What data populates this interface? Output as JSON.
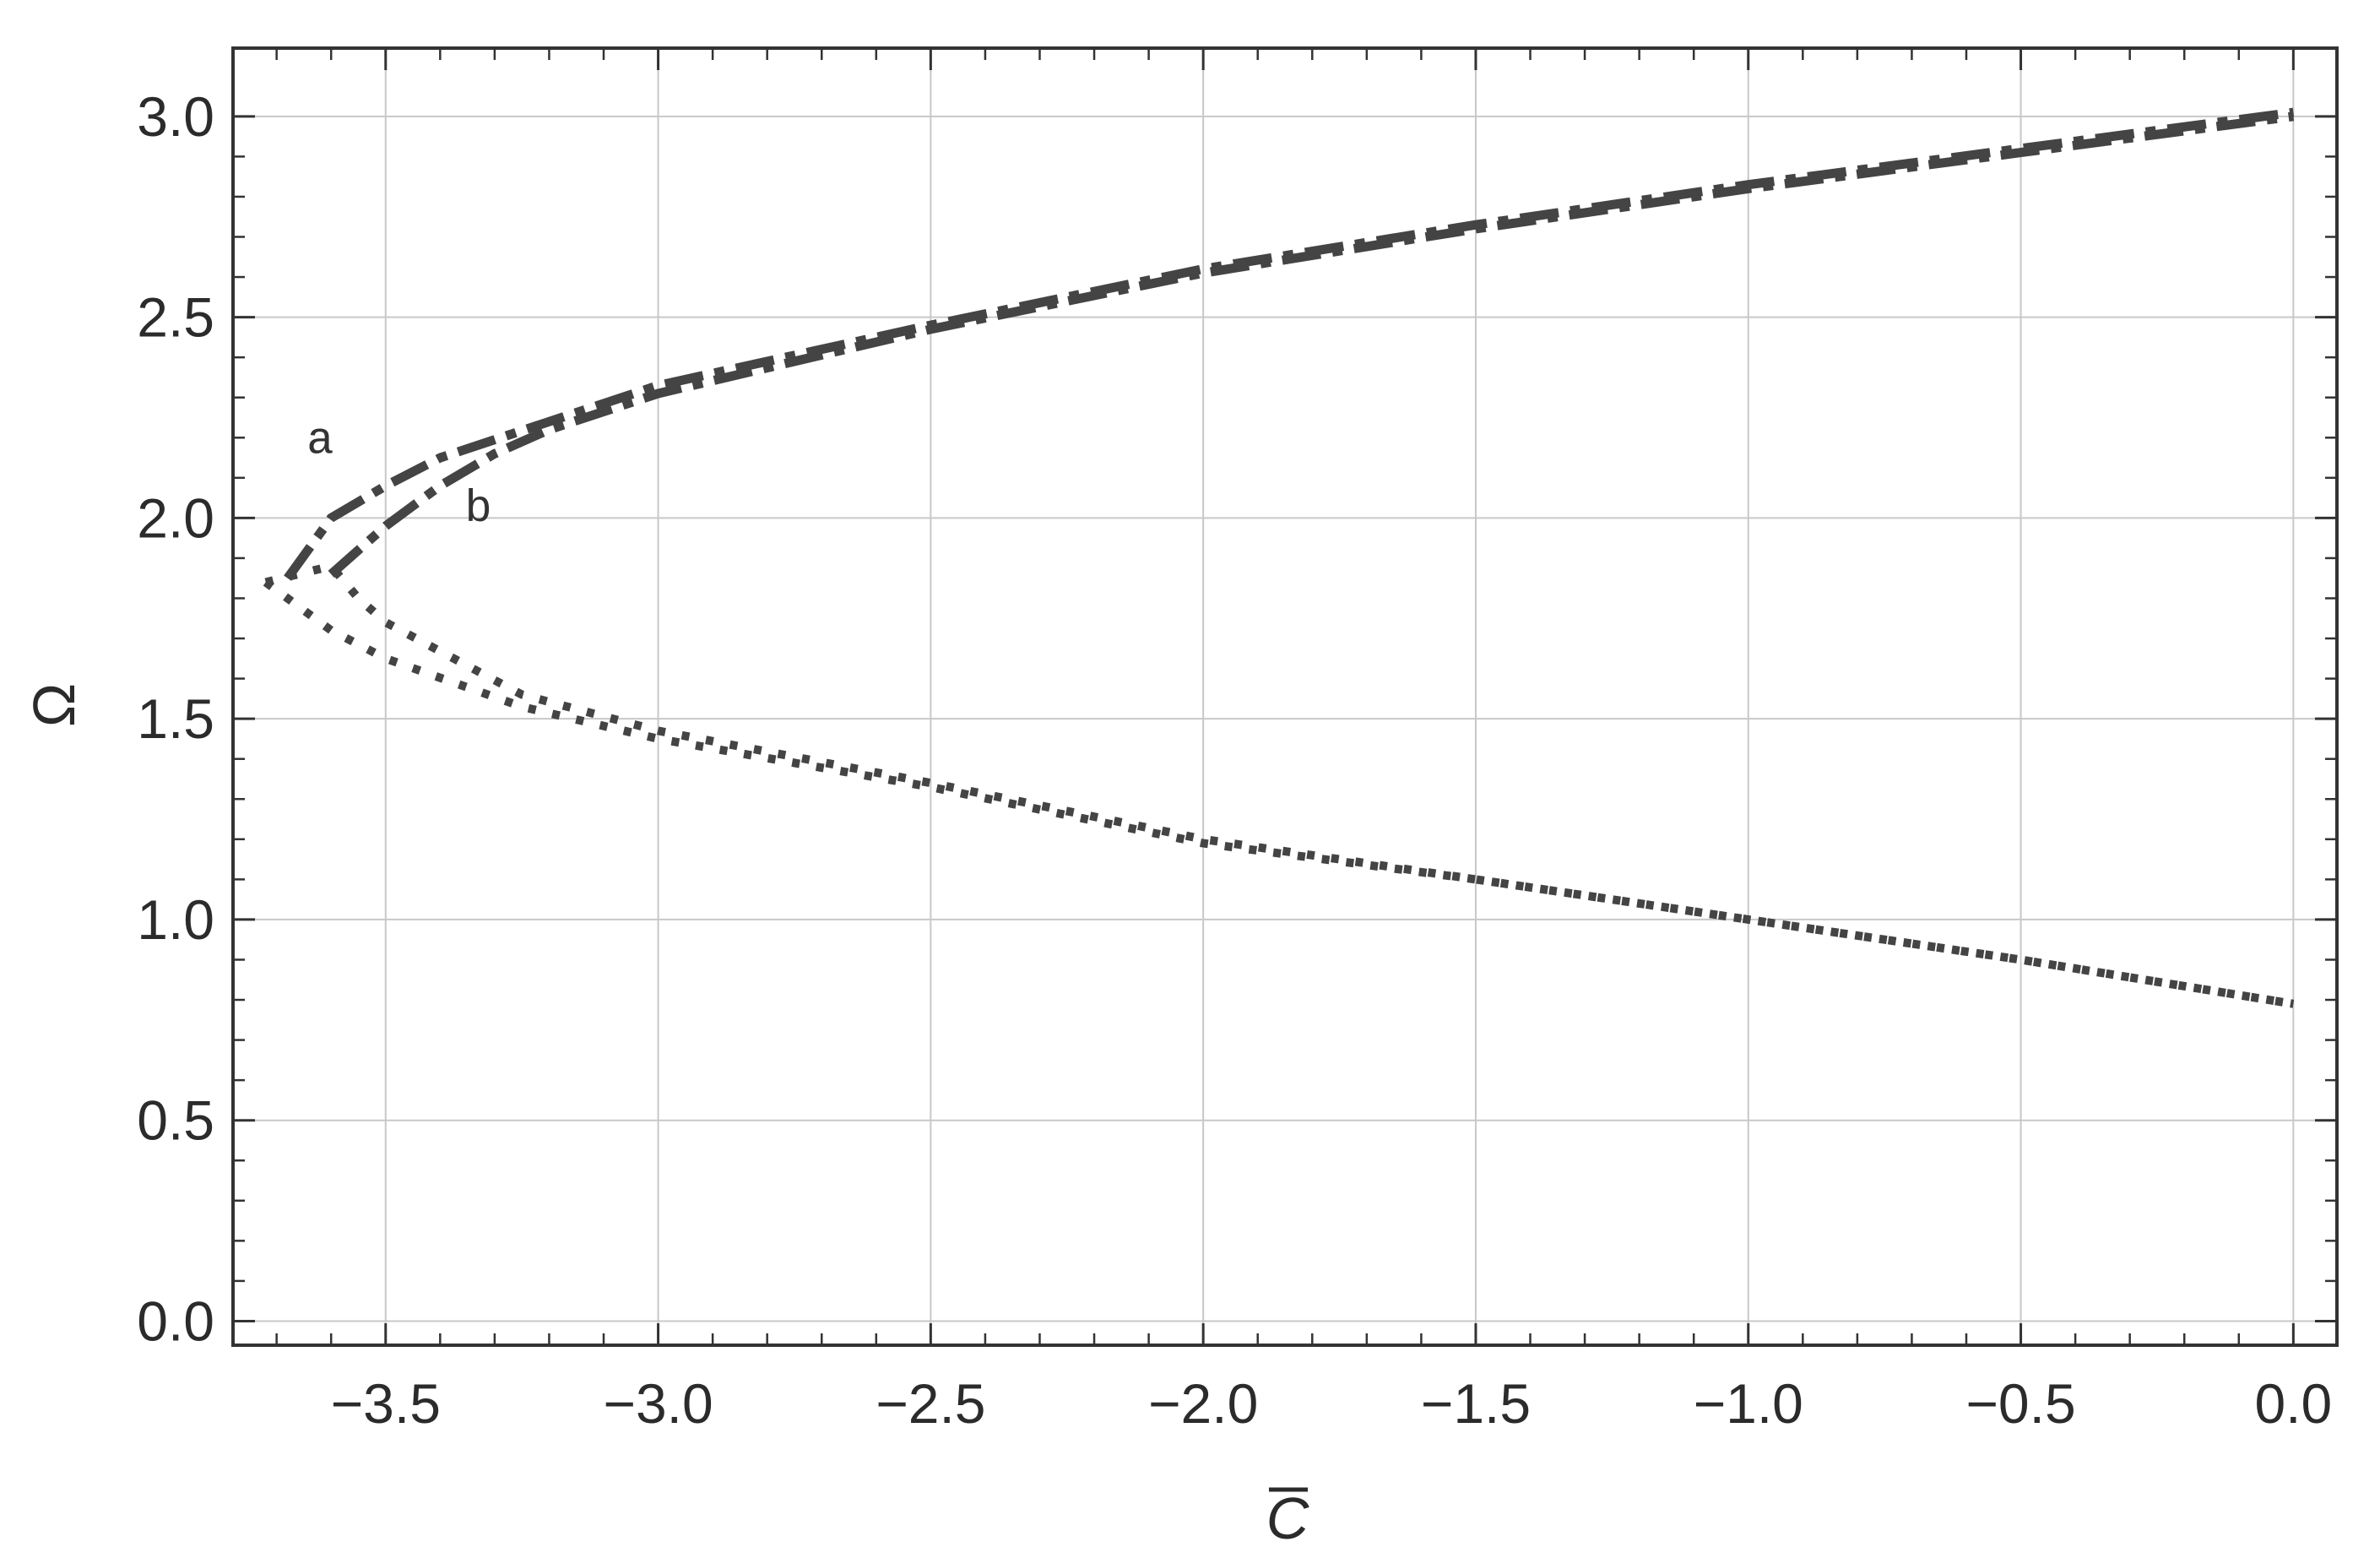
{
  "chart_data": {
    "type": "line",
    "title": "",
    "xlabel": "C",
    "ylabel": "Ω",
    "xlim": [
      -3.78,
      0.08
    ],
    "ylim": [
      -0.06,
      3.17
    ],
    "xticks": [
      -3.5,
      -3.0,
      -2.5,
      -2.0,
      -1.5,
      -1.0,
      -0.5,
      0.0
    ],
    "xtick_labels": [
      "−3.5",
      "−3.0",
      "−2.5",
      "−2.0",
      "−1.5",
      "−1.0",
      "−0.5",
      "0.0"
    ],
    "yticks": [
      0.0,
      0.5,
      1.0,
      1.5,
      2.0,
      2.5,
      3.0
    ],
    "ytick_labels": [
      "0.0",
      "0.5",
      "1.0",
      "1.5",
      "2.0",
      "2.5",
      "3.0"
    ],
    "grid": true,
    "colors": {
      "series": "#444444",
      "grid": "#c8c8c8",
      "frame": "#333333"
    },
    "annotations": [
      {
        "text": "a",
        "x": -3.62,
        "y": 2.2
      },
      {
        "text": "b",
        "x": -3.33,
        "y": 2.03
      }
    ],
    "series": [
      {
        "style": "dashdot",
        "points": [
          [
            -3.68,
            1.85
          ],
          [
            -3.6,
            2.0
          ],
          [
            -3.5,
            2.08
          ],
          [
            -3.4,
            2.15
          ],
          [
            -3.2,
            2.24
          ],
          [
            -3.0,
            2.33
          ],
          [
            -2.5,
            2.48
          ],
          [
            -2.0,
            2.62
          ],
          [
            -1.5,
            2.73
          ],
          [
            -1.0,
            2.83
          ],
          [
            -0.5,
            2.92
          ],
          [
            0.0,
            3.01
          ]
        ]
      },
      {
        "style": "dashdot",
        "points": [
          [
            -3.6,
            1.86
          ],
          [
            -3.5,
            1.98
          ],
          [
            -3.4,
            2.08
          ],
          [
            -3.3,
            2.16
          ],
          [
            -3.2,
            2.22
          ],
          [
            -3.0,
            2.31
          ],
          [
            -2.5,
            2.47
          ],
          [
            -2.0,
            2.61
          ],
          [
            -1.5,
            2.72
          ],
          [
            -1.0,
            2.82
          ],
          [
            -0.5,
            2.91
          ],
          [
            0.0,
            3.0
          ]
        ]
      },
      {
        "style": "dotted",
        "points": [
          [
            -3.72,
            1.84
          ],
          [
            -3.6,
            1.72
          ],
          [
            -3.5,
            1.65
          ],
          [
            -3.25,
            1.53
          ],
          [
            -3.0,
            1.45
          ],
          [
            -2.5,
            1.33
          ],
          [
            -2.0,
            1.19
          ],
          [
            -1.5,
            1.1
          ],
          [
            -1.0,
            1.0
          ],
          [
            -0.5,
            0.9
          ],
          [
            0.0,
            0.79
          ]
        ]
      },
      {
        "style": "dotted",
        "points": [
          [
            -3.72,
            1.84
          ],
          [
            -3.6,
            1.88
          ],
          [
            -3.55,
            1.8
          ],
          [
            -3.5,
            1.74
          ],
          [
            -3.25,
            1.56
          ],
          [
            -3.0,
            1.47
          ],
          [
            -2.5,
            1.34
          ],
          [
            -2.0,
            1.2
          ],
          [
            -1.5,
            1.1
          ],
          [
            -1.0,
            1.0
          ],
          [
            -0.5,
            0.9
          ],
          [
            0.0,
            0.79
          ]
        ]
      }
    ]
  }
}
